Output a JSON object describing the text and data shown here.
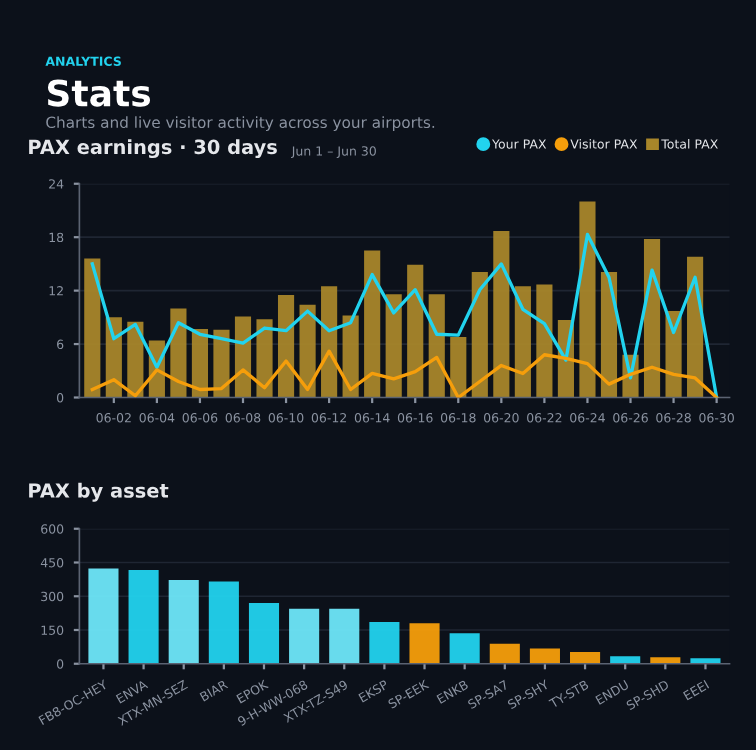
{
  "chart_data": [
    {
      "type": "bar",
      "title": "PAX earnings · 30 days",
      "subtitle": "Jun 1 – Jun 30",
      "annotations": [
        "ANALYTICS",
        "Stats",
        "Charts and live visitor activity across your airports."
      ],
      "categories": [
        null,
        "06-02",
        null,
        "06-04",
        null,
        "06-06",
        null,
        "06-08",
        null,
        "06-10",
        null,
        "06-12",
        null,
        "06-14",
        null,
        "06-16",
        null,
        "06-18",
        null,
        "06-20",
        null,
        "06-22",
        null,
        "06-24",
        null,
        "06-26",
        null,
        "06-28",
        null,
        "06-30"
      ],
      "series": [
        {
          "name": "Your PAX",
          "type": "line",
          "color": "#22d3ee",
          "values": [
            15.0,
            6.6,
            8.2,
            3.4,
            8.4,
            7.1,
            6.6,
            6.1,
            7.8,
            7.5,
            9.7,
            7.5,
            8.4,
            13.8,
            9.5,
            12.1,
            7.1,
            7.0,
            12.1,
            15.0,
            9.9,
            8.3,
            4.2,
            18.3,
            13.5,
            2.2,
            14.3,
            7.3,
            13.5,
            0
          ]
        },
        {
          "name": "Visitor PAX",
          "type": "line",
          "color": "#f59e0b",
          "values": [
            0.9,
            2.0,
            0.2,
            3.1,
            1.8,
            0.9,
            1.0,
            3.1,
            1.1,
            4.1,
            0.9,
            5.2,
            0.9,
            2.7,
            2.1,
            2.9,
            4.5,
            0,
            1.8,
            3.6,
            2.7,
            4.8,
            4.4,
            3.8,
            1.5,
            2.6,
            3.4,
            2.6,
            2.2,
            0
          ]
        },
        {
          "name": "Total PAX",
          "type": "bar",
          "color": "#a8862a",
          "values": [
            15.6,
            9.0,
            8.5,
            6.4,
            10.0,
            7.7,
            7.6,
            9.1,
            8.8,
            11.5,
            10.4,
            12.5,
            9.2,
            16.5,
            11.6,
            14.9,
            11.6,
            6.8,
            14.1,
            18.7,
            12.5,
            12.7,
            8.7,
            22.0,
            14.1,
            4.8,
            17.8,
            9.7,
            15.8,
            0
          ]
        }
      ],
      "ylim": [
        0,
        24
      ],
      "yticks": [
        0,
        6,
        12,
        18,
        24
      ],
      "grid": "y",
      "legend": "top right",
      "line_style": "solid",
      "marker": "none"
    },
    {
      "type": "bar",
      "title": "PAX by asset",
      "categories": [
        "FB8-OC-HEY",
        "ENVA",
        "XTX-MN-SEZ",
        "BIAR",
        "EPOK",
        "9-H-WW-068",
        "XTX-TZ-S49",
        "EKSP",
        "SP-EEK",
        "ENKB",
        "SP-SA7",
        "SP-SHY",
        "TY-STB",
        "ENDU",
        "SP-SHD",
        "EEEI"
      ],
      "values": [
        423,
        417,
        372,
        365,
        270,
        244,
        244,
        186,
        180,
        136,
        89,
        68,
        52,
        33,
        29,
        25
      ],
      "colors": [
        "#6ee7f9",
        "#22d3ee",
        "#6ee7f9",
        "#22d3ee",
        "#22d3ee",
        "#6ee7f9",
        "#6ee7f9",
        "#22d3ee",
        "#f59e0b",
        "#22d3ee",
        "#f59e0b",
        "#f59e0b",
        "#f59e0b",
        "#22d3ee",
        "#f59e0b",
        "#22d3ee"
      ],
      "ylim": [
        0,
        600
      ],
      "yticks": [
        0,
        150,
        300,
        450,
        600
      ],
      "grid": "y",
      "legend": false
    }
  ]
}
